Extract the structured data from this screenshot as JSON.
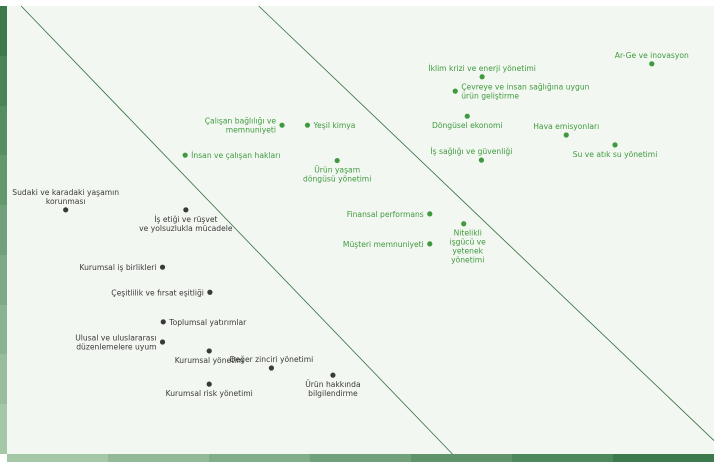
{
  "chart_data": {
    "type": "scatter",
    "title": "",
    "xlabel": "",
    "ylabel": "",
    "xlim": [
      0,
      100
    ],
    "ylim": [
      0,
      100
    ],
    "grid": false,
    "legend": "none",
    "colors": {
      "high": "#3e9a3e",
      "low": "#3a3a3a",
      "background": "#f3f7f1",
      "line": "#2f6e3f",
      "bar_dark": "#3c7a4d",
      "bar_light": "#a4c7a6"
    },
    "points": [
      {
        "label": "Ar-Ge ve inovasyon",
        "x": 91.2,
        "y": 87.1,
        "group": "high"
      },
      {
        "label": "İklim krizi ve enerji yönetimi",
        "x": 67.2,
        "y": 84.2,
        "group": "high"
      },
      {
        "label": "Çevreye ve insan sağlığına uygun ürün geliştirme",
        "x": 63.4,
        "y": 81.0,
        "group": "high"
      },
      {
        "label": "Döngüsel ekonomi",
        "x": 65.1,
        "y": 75.4,
        "group": "high"
      },
      {
        "label": "Hava emisyonları",
        "x": 79.1,
        "y": 71.2,
        "group": "high"
      },
      {
        "label": "Su ve atık su yönetimi",
        "x": 86.0,
        "y": 69.0,
        "group": "high"
      },
      {
        "label": "İş sağlığı ve güvenliği",
        "x": 67.1,
        "y": 65.6,
        "group": "high"
      },
      {
        "label": "Çalışan bağlılığı ve memnuniyeti",
        "x": 38.9,
        "y": 73.4,
        "group": "high"
      },
      {
        "label": "Yeşil kimya",
        "x": 42.5,
        "y": 73.4,
        "group": "high"
      },
      {
        "label": "İnsan ve çalışan hakları",
        "x": 25.2,
        "y": 66.7,
        "group": "high"
      },
      {
        "label": "Ürün yaşam döngüsü yönetimi",
        "x": 46.7,
        "y": 65.5,
        "group": "high"
      },
      {
        "label": "Finansal performans",
        "x": 59.8,
        "y": 53.6,
        "group": "high"
      },
      {
        "label": "Nitelikli işgücü ve yetenek yönetimi",
        "x": 64.6,
        "y": 51.4,
        "group": "high"
      },
      {
        "label": "Müşteri memnuniyeti",
        "x": 59.8,
        "y": 46.9,
        "group": "high"
      },
      {
        "label": "Sudaki ve karadaki yaşamın korunması",
        "x": 8.3,
        "y": 54.5,
        "group": "low"
      },
      {
        "label": "İş etiği ve rüşvet ve yolsuzlukla mücadele",
        "x": 25.3,
        "y": 54.5,
        "group": "low"
      },
      {
        "label": "Kurumsal iş birlikleri",
        "x": 22.0,
        "y": 41.7,
        "group": "low"
      },
      {
        "label": "Çeşitlilik ve fırsat eşitliği",
        "x": 28.7,
        "y": 36.1,
        "group": "low"
      },
      {
        "label": "Toplumsal yatırımlar",
        "x": 22.1,
        "y": 29.5,
        "group": "low"
      },
      {
        "label": "Ulusal ve uluslararası düzenlemelere uyum",
        "x": 22.0,
        "y": 25.0,
        "group": "low"
      },
      {
        "label": "Kurumsal yönetim",
        "x": 28.6,
        "y": 23.0,
        "group": "low"
      },
      {
        "label": "Değer zinciri yönetimi",
        "x": 37.4,
        "y": 19.2,
        "group": "low"
      },
      {
        "label": "Ürün hakkında bilgilendirme",
        "x": 46.1,
        "y": 17.6,
        "group": "low"
      },
      {
        "label": "Kurumsal risk yönetimi",
        "x": 28.6,
        "y": 15.6,
        "group": "low"
      }
    ],
    "boundaries": [
      {
        "from": [
          2,
          100
        ],
        "to": [
          63,
          0
        ]
      },
      {
        "from": [
          35.6,
          100
        ],
        "to": [
          100,
          3
        ]
      }
    ]
  }
}
